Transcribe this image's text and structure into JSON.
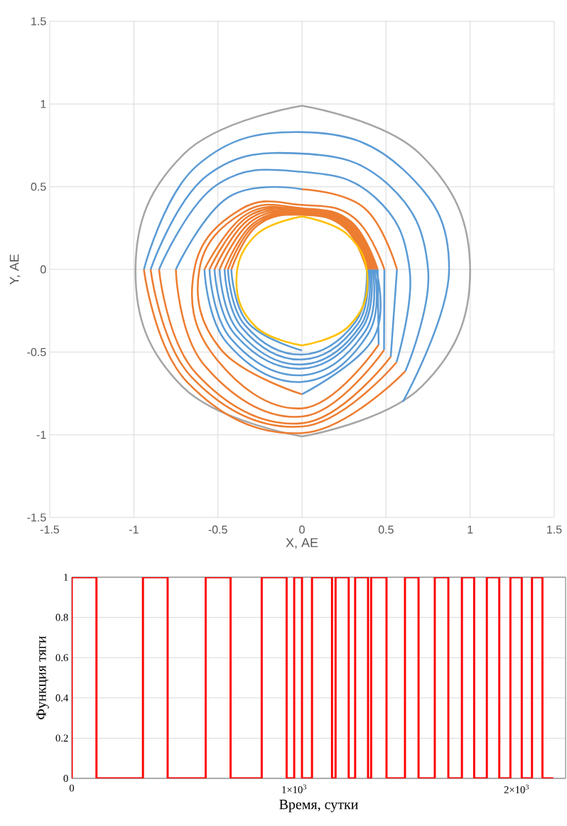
{
  "chart_data": [
    {
      "type": "line",
      "xlabel": "X, АЕ",
      "ylabel": "Y, АЕ",
      "xlim": [
        -1.5,
        1.5
      ],
      "ylim": [
        -1.5,
        1.5
      ],
      "xticks": [
        -1.5,
        -1,
        -0.5,
        0,
        0.5,
        1,
        1.5
      ],
      "yticks": [
        -1.5,
        -1,
        -0.5,
        0,
        0.5,
        1,
        1.5
      ],
      "grid": true,
      "line_style": "solid",
      "series": [
        {
          "color": "#a5a5a5",
          "x": [
            0,
            -0.7,
            -0.99,
            -0.71,
            0,
            null,
            0,
            0.71,
            1,
            0.7,
            0
          ],
          "values": [
            0.99,
            0.7,
            0,
            -0.71,
            -1.01,
            null,
            -1.01,
            -0.71,
            0,
            0.7,
            0.99
          ]
        },
        {
          "color": "#5b9bd5",
          "x": [
            0.6,
            0.875,
            0.603,
            0,
            -0.626,
            -0.94,
            null,
            0.615,
            0.75,
            0.513,
            0,
            -0.566,
            -0.9,
            null,
            0.562,
            0.64,
            0.435,
            0,
            -0.509,
            -0.85,
            null,
            0.528,
            0.565,
            null,
            0,
            -0.437,
            -0.75,
            null,
            0.488,
            0.49,
            null,
            0.456,
            0.45,
            null,
            0,
            0.422,
            0.44,
            null,
            -0.58,
            -0.445,
            0,
            0.392,
            0.43,
            null,
            -0.55,
            -0.421,
            0,
            0.375,
            0.42,
            null,
            -0.52,
            -0.396,
            0,
            0.357,
            0.41,
            null,
            -0.49,
            -0.376,
            0,
            0.345,
            0.4,
            null,
            -0.46,
            -0.355,
            0,
            0.331,
            0.39,
            null,
            -0.44,
            -0.338,
            0,
            0.318,
            0.385,
            null,
            -0.42,
            -0.322,
            0
          ],
          "values": [
            -0.8,
            0,
            0.603,
            0.83,
            0.626,
            0,
            null,
            -0.615,
            0,
            0.513,
            0.7,
            0.566,
            0,
            null,
            -0.562,
            0,
            0.435,
            0.59,
            0.509,
            0,
            null,
            -0.528,
            0,
            null,
            0.485,
            0.437,
            0,
            null,
            -0.488,
            0,
            null,
            -0.456,
            0,
            null,
            -0.755,
            -0.422,
            0,
            null,
            0,
            -0.445,
            -0.68,
            -0.392,
            0,
            null,
            0,
            -0.421,
            -0.64,
            -0.375,
            0,
            null,
            0,
            -0.396,
            -0.6,
            -0.357,
            0,
            null,
            0,
            -0.376,
            -0.575,
            -0.345,
            0,
            null,
            0,
            -0.355,
            -0.545,
            -0.331,
            0,
            null,
            0,
            -0.338,
            -0.515,
            -0.318,
            0,
            null,
            0,
            -0.322,
            -0.49
          ]
        },
        {
          "color": "#ed7d31",
          "x": [
            -0.94,
            -0.682,
            0,
            0.615,
            null,
            -0.9,
            -0.654,
            0,
            0.562,
            null,
            -0.85,
            -0.629,
            0,
            0.528,
            null,
            0.565,
            0.371,
            0,
            null,
            -0.75,
            -0.58,
            0,
            0.488,
            null,
            0.49,
            0.311,
            0,
            -0.364,
            -0.64,
            -0.523,
            0,
            0.456,
            null,
            0.45,
            0.29,
            0,
            -0.346,
            -0.61,
            -0.483,
            0,
            null,
            0.44,
            0.283,
            0,
            -0.332,
            -0.58,
            null,
            0.43,
            0.277,
            0,
            -0.32,
            -0.55,
            null,
            0.42,
            0.272,
            0,
            -0.308,
            -0.52,
            null,
            0.41,
            0.267,
            0,
            -0.295,
            -0.49,
            null,
            0.4,
            0.262,
            0,
            -0.283,
            -0.46,
            null,
            0.39,
            0.256,
            0,
            -0.274,
            -0.44,
            null,
            0.385,
            0.253,
            0,
            -0.265,
            -0.42
          ],
          "values": [
            0,
            -0.682,
            -0.99,
            -0.615,
            null,
            0,
            -0.654,
            -0.95,
            -0.562,
            null,
            0,
            -0.629,
            -0.93,
            -0.528,
            null,
            0,
            0.371,
            0.485,
            null,
            0,
            -0.58,
            -0.89,
            -0.488,
            null,
            0,
            0.311,
            0.39,
            0.364,
            0,
            -0.523,
            -0.84,
            -0.456,
            null,
            0,
            0.29,
            0.37,
            0.346,
            0,
            -0.483,
            -0.755,
            null,
            0,
            0.283,
            0.36,
            0.332,
            0,
            null,
            0,
            0.277,
            0.355,
            0.32,
            0,
            null,
            0,
            0.272,
            0.35,
            0.308,
            0,
            null,
            0,
            0.267,
            0.345,
            0.295,
            0,
            null,
            0,
            0.262,
            0.34,
            0.283,
            0,
            null,
            0,
            0.256,
            0.335,
            0.274,
            0,
            null,
            0,
            0.253,
            0.33,
            0.265,
            0
          ]
        },
        {
          "color": "#ffc000",
          "x": [
            0,
            -0.276,
            -0.39,
            -0.276,
            0,
            null,
            0,
            0.276,
            0.39,
            0.276,
            0
          ],
          "values": [
            0.32,
            0.206,
            -0.07,
            -0.346,
            -0.46,
            null,
            -0.46,
            -0.346,
            -0.07,
            0.206,
            0.32
          ]
        }
      ]
    },
    {
      "type": "step",
      "xlabel": "Время, сутки",
      "ylabel": "Функция тяги",
      "xlim": [
        0,
        2220
      ],
      "ylim": [
        0,
        1
      ],
      "xticks": [
        0,
        {
          "value": 1000,
          "label": "1×10$^{3}$"
        },
        {
          "value": 2000,
          "label": "2×10$^{3}$"
        }
      ],
      "yticks": [
        0,
        0.2,
        0.4,
        0.6,
        0.8,
        1
      ],
      "grid": "y",
      "line_style": "solid",
      "color": "#ff0000",
      "x": [
        0,
        0,
        111,
        320,
        431,
        602,
        714,
        854,
        966,
        1000,
        1035,
        1080,
        1170,
        1186,
        1245,
        1274,
        1332,
        1346,
        1415,
        1498,
        1559,
        1632,
        1693,
        1754,
        1809,
        1866,
        1922,
        1972,
        2023,
        2069,
        2116,
        2165
      ],
      "values": [
        0,
        1,
        0,
        1,
        0,
        1,
        0,
        1,
        0,
        1,
        0,
        1,
        0,
        1,
        0,
        1,
        0,
        1,
        0,
        1,
        0,
        1,
        0,
        1,
        0,
        1,
        0,
        1,
        0,
        1,
        0,
        0
      ]
    }
  ]
}
